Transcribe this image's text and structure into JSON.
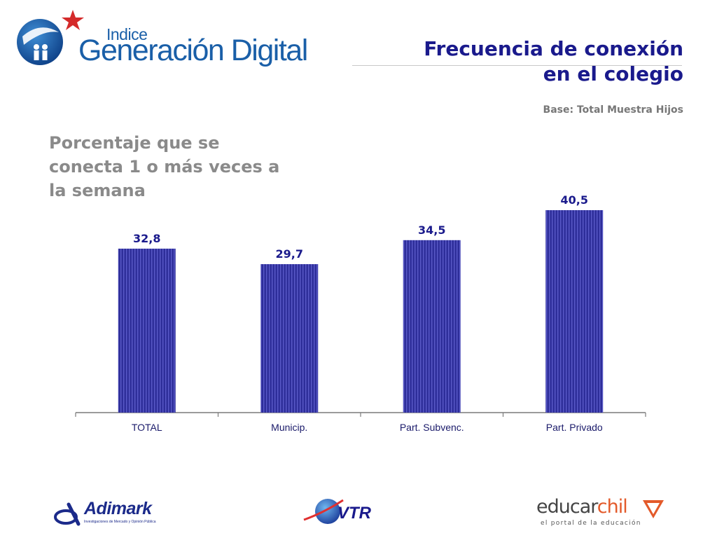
{
  "header": {
    "logo_small": "Indice",
    "logo_main": "Generación Digital",
    "title_line1": "Frecuencia de conexión",
    "title_line2": "en el colegio",
    "base": "Base: Total Muestra Hijos"
  },
  "subtitle": "Porcentaje que se conecta 1 o más veces a la semana",
  "colors": {
    "bar": "#2e2e9a",
    "title": "#1a1a8c",
    "brand_blue": "#1a5fa8",
    "star_red": "#d42a2a"
  },
  "chart_data": {
    "type": "bar",
    "categories": [
      "TOTAL",
      "Municip.",
      "Part. Subvenc.",
      "Part. Privado"
    ],
    "values": [
      32.8,
      29.7,
      34.5,
      40.5
    ],
    "value_labels": [
      "32,8",
      "29,7",
      "34,5",
      "40,5"
    ],
    "title": "",
    "xlabel": "",
    "ylabel": "",
    "ylim": [
      0,
      40.5
    ],
    "grid": false,
    "legend": "none"
  },
  "footer": {
    "adimark_name": "Adimark",
    "adimark_tagline": "Investigaciones de Mercado y Opinión Pública",
    "adimark_icon": "adimark-swirl-icon",
    "vtr_name": "VTR",
    "vtr_icon": "vtr-globe-icon",
    "educar_part1": "educar",
    "educar_part2": "chil",
    "educar_tagline": "el portal de la educación",
    "educar_icon": "educar-arrow-icon"
  }
}
